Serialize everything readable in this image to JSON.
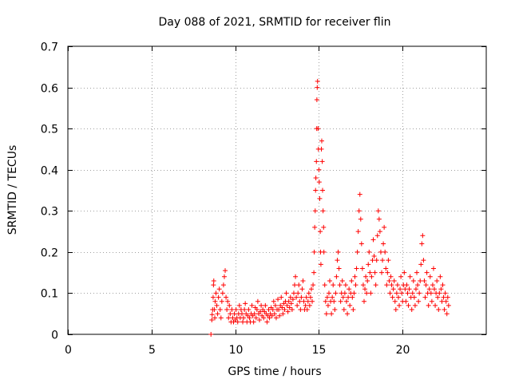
{
  "chart_data": {
    "type": "scatter",
    "title": "Day 088 of 2021, SRMTID for receiver flin",
    "xlabel": "GPS time / hours",
    "ylabel": "SRMTID / TECUs",
    "xlim": [
      0,
      25
    ],
    "ylim": [
      0,
      0.7
    ],
    "xticks": [
      0,
      5,
      10,
      15,
      20
    ],
    "xtick_labels": [
      "0",
      "5",
      "10",
      "15",
      "20"
    ],
    "yticks": [
      0,
      0.1,
      0.2,
      0.3,
      0.4,
      0.5,
      0.6,
      0.7
    ],
    "ytick_labels": [
      "0",
      "0.1",
      "0.2",
      "0.3",
      "0.4",
      "0.5",
      "0.6",
      "0.7"
    ],
    "grid": true,
    "marker": "+",
    "color": "#ff0000",
    "series": [
      {
        "name": "SRMTID",
        "points": [
          [
            8.55,
            0.0
          ],
          [
            8.6,
            0.035
          ],
          [
            8.62,
            0.048
          ],
          [
            8.65,
            0.06
          ],
          [
            8.68,
            0.09
          ],
          [
            8.7,
            0.12
          ],
          [
            8.72,
            0.13
          ],
          [
            8.75,
            0.06
          ],
          [
            8.78,
            0.04
          ],
          [
            8.8,
            0.08
          ],
          [
            8.85,
            0.1
          ],
          [
            8.9,
            0.07
          ],
          [
            8.95,
            0.05
          ],
          [
            9.0,
            0.09
          ],
          [
            9.05,
            0.11
          ],
          [
            9.1,
            0.06
          ],
          [
            9.15,
            0.04
          ],
          [
            9.2,
            0.08
          ],
          [
            9.25,
            0.1
          ],
          [
            9.3,
            0.12
          ],
          [
            9.35,
            0.14
          ],
          [
            9.4,
            0.155
          ],
          [
            9.45,
            0.09
          ],
          [
            9.5,
            0.06
          ],
          [
            9.55,
            0.08
          ],
          [
            9.6,
            0.04
          ],
          [
            9.65,
            0.07
          ],
          [
            9.7,
            0.05
          ],
          [
            9.75,
            0.03
          ],
          [
            9.8,
            0.06
          ],
          [
            9.85,
            0.04
          ],
          [
            9.9,
            0.03
          ],
          [
            9.95,
            0.05
          ],
          [
            10.0,
            0.035
          ],
          [
            10.05,
            0.06
          ],
          [
            10.1,
            0.04
          ],
          [
            10.15,
            0.03
          ],
          [
            10.2,
            0.05
          ],
          [
            10.25,
            0.07
          ],
          [
            10.3,
            0.04
          ],
          [
            10.35,
            0.06
          ],
          [
            10.4,
            0.05
          ],
          [
            10.45,
            0.03
          ],
          [
            10.5,
            0.04
          ],
          [
            10.55,
            0.06
          ],
          [
            10.6,
            0.075
          ],
          [
            10.65,
            0.05
          ],
          [
            10.7,
            0.03
          ],
          [
            10.75,
            0.045
          ],
          [
            10.8,
            0.06
          ],
          [
            10.85,
            0.04
          ],
          [
            10.9,
            0.03
          ],
          [
            10.95,
            0.05
          ],
          [
            11.0,
            0.07
          ],
          [
            11.05,
            0.045
          ],
          [
            11.1,
            0.03
          ],
          [
            11.15,
            0.05
          ],
          [
            11.2,
            0.065
          ],
          [
            11.25,
            0.04
          ],
          [
            11.3,
            0.06
          ],
          [
            11.35,
            0.08
          ],
          [
            11.4,
            0.05
          ],
          [
            11.45,
            0.035
          ],
          [
            11.5,
            0.055
          ],
          [
            11.55,
            0.07
          ],
          [
            11.6,
            0.045
          ],
          [
            11.65,
            0.06
          ],
          [
            11.7,
            0.04
          ],
          [
            11.75,
            0.055
          ],
          [
            11.8,
            0.07
          ],
          [
            11.85,
            0.05
          ],
          [
            11.9,
            0.03
          ],
          [
            11.95,
            0.045
          ],
          [
            12.0,
            0.06
          ],
          [
            12.05,
            0.04
          ],
          [
            12.1,
            0.05
          ],
          [
            12.15,
            0.065
          ],
          [
            12.2,
            0.045
          ],
          [
            12.25,
            0.06
          ],
          [
            12.3,
            0.08
          ],
          [
            12.35,
            0.05
          ],
          [
            12.4,
            0.07
          ],
          [
            12.45,
            0.04
          ],
          [
            12.5,
            0.06
          ],
          [
            12.55,
            0.085
          ],
          [
            12.6,
            0.06
          ],
          [
            12.65,
            0.045
          ],
          [
            12.7,
            0.07
          ],
          [
            12.75,
            0.09
          ],
          [
            12.8,
            0.065
          ],
          [
            12.85,
            0.05
          ],
          [
            12.9,
            0.075
          ],
          [
            12.95,
            0.06
          ],
          [
            13.0,
            0.08
          ],
          [
            13.05,
            0.1
          ],
          [
            13.1,
            0.07
          ],
          [
            13.15,
            0.055
          ],
          [
            13.2,
            0.08
          ],
          [
            13.25,
            0.065
          ],
          [
            13.3,
            0.09
          ],
          [
            13.35,
            0.075
          ],
          [
            13.4,
            0.06
          ],
          [
            13.45,
            0.085
          ],
          [
            13.5,
            0.1
          ],
          [
            13.55,
            0.12
          ],
          [
            13.6,
            0.14
          ],
          [
            13.65,
            0.09
          ],
          [
            13.7,
            0.07
          ],
          [
            13.75,
            0.1
          ],
          [
            13.8,
            0.12
          ],
          [
            13.85,
            0.08
          ],
          [
            13.9,
            0.06
          ],
          [
            13.95,
            0.09
          ],
          [
            14.0,
            0.11
          ],
          [
            14.05,
            0.13
          ],
          [
            14.1,
            0.08
          ],
          [
            14.15,
            0.06
          ],
          [
            14.2,
            0.07
          ],
          [
            14.25,
            0.09
          ],
          [
            14.3,
            0.06
          ],
          [
            14.35,
            0.08
          ],
          [
            14.4,
            0.1
          ],
          [
            14.45,
            0.07
          ],
          [
            14.5,
            0.09
          ],
          [
            14.55,
            0.11
          ],
          [
            14.6,
            0.08
          ],
          [
            14.65,
            0.12
          ],
          [
            14.7,
            0.15
          ],
          [
            14.72,
            0.2
          ],
          [
            14.75,
            0.26
          ],
          [
            14.78,
            0.3
          ],
          [
            14.8,
            0.35
          ],
          [
            14.82,
            0.38
          ],
          [
            14.85,
            0.42
          ],
          [
            14.87,
            0.5
          ],
          [
            14.88,
            0.57
          ],
          [
            14.9,
            0.6
          ],
          [
            14.92,
            0.615
          ],
          [
            14.95,
            0.5
          ],
          [
            14.97,
            0.45
          ],
          [
            15.0,
            0.4
          ],
          [
            15.02,
            0.37
          ],
          [
            15.05,
            0.33
          ],
          [
            15.08,
            0.25
          ],
          [
            15.1,
            0.2
          ],
          [
            15.12,
            0.17
          ],
          [
            15.15,
            0.45
          ],
          [
            15.17,
            0.47
          ],
          [
            15.2,
            0.42
          ],
          [
            15.22,
            0.35
          ],
          [
            15.25,
            0.3
          ],
          [
            15.28,
            0.26
          ],
          [
            15.3,
            0.2
          ],
          [
            15.35,
            0.12
          ],
          [
            15.4,
            0.08
          ],
          [
            15.45,
            0.05
          ],
          [
            15.5,
            0.09
          ],
          [
            15.55,
            0.07
          ],
          [
            15.6,
            0.1
          ],
          [
            15.65,
            0.13
          ],
          [
            15.7,
            0.08
          ],
          [
            15.75,
            0.05
          ],
          [
            15.8,
            0.09
          ],
          [
            15.85,
            0.12
          ],
          [
            15.9,
            0.08
          ],
          [
            15.95,
            0.06
          ],
          [
            16.0,
            0.1
          ],
          [
            16.05,
            0.14
          ],
          [
            16.1,
            0.18
          ],
          [
            16.15,
            0.2
          ],
          [
            16.2,
            0.16
          ],
          [
            16.25,
            0.12
          ],
          [
            16.3,
            0.08
          ],
          [
            16.35,
            0.1
          ],
          [
            16.4,
            0.13
          ],
          [
            16.45,
            0.09
          ],
          [
            16.5,
            0.06
          ],
          [
            16.55,
            0.1
          ],
          [
            16.6,
            0.12
          ],
          [
            16.65,
            0.08
          ],
          [
            16.7,
            0.05
          ],
          [
            16.75,
            0.09
          ],
          [
            16.8,
            0.11
          ],
          [
            16.85,
            0.07
          ],
          [
            16.9,
            0.1
          ],
          [
            16.95,
            0.13
          ],
          [
            17.0,
            0.09
          ],
          [
            17.05,
            0.06
          ],
          [
            17.1,
            0.1
          ],
          [
            17.15,
            0.14
          ],
          [
            17.2,
            0.12
          ],
          [
            17.25,
            0.16
          ],
          [
            17.3,
            0.2
          ],
          [
            17.35,
            0.25
          ],
          [
            17.4,
            0.3
          ],
          [
            17.45,
            0.34
          ],
          [
            17.5,
            0.28
          ],
          [
            17.55,
            0.22
          ],
          [
            17.6,
            0.16
          ],
          [
            17.65,
            0.12
          ],
          [
            17.7,
            0.08
          ],
          [
            17.75,
            0.11
          ],
          [
            17.8,
            0.14
          ],
          [
            17.85,
            0.1
          ],
          [
            17.9,
            0.13
          ],
          [
            17.95,
            0.17
          ],
          [
            18.0,
            0.2
          ],
          [
            18.05,
            0.15
          ],
          [
            18.1,
            0.1
          ],
          [
            18.15,
            0.14
          ],
          [
            18.2,
            0.18
          ],
          [
            18.25,
            0.23
          ],
          [
            18.3,
            0.19
          ],
          [
            18.35,
            0.15
          ],
          [
            18.4,
            0.12
          ],
          [
            18.45,
            0.18
          ],
          [
            18.5,
            0.24
          ],
          [
            18.55,
            0.3
          ],
          [
            18.6,
            0.28
          ],
          [
            18.65,
            0.25
          ],
          [
            18.7,
            0.2
          ],
          [
            18.75,
            0.15
          ],
          [
            18.8,
            0.18
          ],
          [
            18.85,
            0.22
          ],
          [
            18.9,
            0.26
          ],
          [
            18.95,
            0.2
          ],
          [
            19.0,
            0.16
          ],
          [
            19.05,
            0.12
          ],
          [
            19.1,
            0.15
          ],
          [
            19.15,
            0.18
          ],
          [
            19.2,
            0.13
          ],
          [
            19.25,
            0.1
          ],
          [
            19.3,
            0.14
          ],
          [
            19.35,
            0.12
          ],
          [
            19.4,
            0.09
          ],
          [
            19.45,
            0.11
          ],
          [
            19.5,
            0.13
          ],
          [
            19.55,
            0.08
          ],
          [
            19.6,
            0.06
          ],
          [
            19.65,
            0.1
          ],
          [
            19.7,
            0.12
          ],
          [
            19.75,
            0.09
          ],
          [
            19.8,
            0.07
          ],
          [
            19.85,
            0.11
          ],
          [
            19.9,
            0.14
          ],
          [
            19.95,
            0.1
          ],
          [
            20.0,
            0.08
          ],
          [
            20.05,
            0.12
          ],
          [
            20.1,
            0.15
          ],
          [
            20.15,
            0.11
          ],
          [
            20.2,
            0.08
          ],
          [
            20.25,
            0.12
          ],
          [
            20.3,
            0.1
          ],
          [
            20.35,
            0.07
          ],
          [
            20.4,
            0.11
          ],
          [
            20.45,
            0.14
          ],
          [
            20.5,
            0.09
          ],
          [
            20.55,
            0.06
          ],
          [
            20.6,
            0.1
          ],
          [
            20.65,
            0.13
          ],
          [
            20.7,
            0.09
          ],
          [
            20.75,
            0.07
          ],
          [
            20.8,
            0.11
          ],
          [
            20.85,
            0.15
          ],
          [
            20.9,
            0.12
          ],
          [
            20.95,
            0.08
          ],
          [
            21.0,
            0.1
          ],
          [
            21.05,
            0.13
          ],
          [
            21.1,
            0.17
          ],
          [
            21.15,
            0.22
          ],
          [
            21.2,
            0.24
          ],
          [
            21.25,
            0.18
          ],
          [
            21.3,
            0.13
          ],
          [
            21.35,
            0.09
          ],
          [
            21.4,
            0.12
          ],
          [
            21.45,
            0.15
          ],
          [
            21.5,
            0.1
          ],
          [
            21.55,
            0.07
          ],
          [
            21.6,
            0.11
          ],
          [
            21.65,
            0.14
          ],
          [
            21.7,
            0.1
          ],
          [
            21.75,
            0.08
          ],
          [
            21.8,
            0.12
          ],
          [
            21.85,
            0.16
          ],
          [
            21.9,
            0.11
          ],
          [
            21.95,
            0.07
          ],
          [
            22.0,
            0.1
          ],
          [
            22.05,
            0.13
          ],
          [
            22.1,
            0.09
          ],
          [
            22.15,
            0.06
          ],
          [
            22.2,
            0.1
          ],
          [
            22.25,
            0.14
          ],
          [
            22.3,
            0.11
          ],
          [
            22.35,
            0.08
          ],
          [
            22.4,
            0.12
          ],
          [
            22.45,
            0.09
          ],
          [
            22.5,
            0.06
          ],
          [
            22.55,
            0.1
          ],
          [
            22.6,
            0.08
          ],
          [
            22.65,
            0.05
          ],
          [
            22.7,
            0.09
          ],
          [
            22.75,
            0.07
          ]
        ]
      }
    ]
  }
}
